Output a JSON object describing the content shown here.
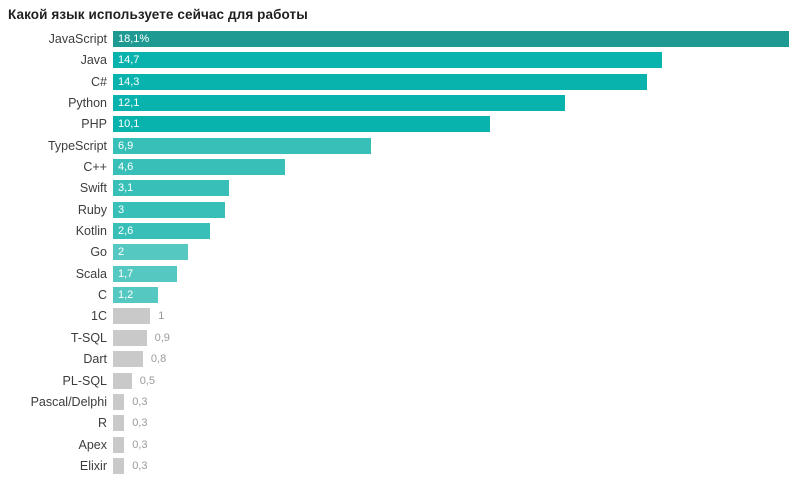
{
  "title": "Какой язык используете сейчас для работы",
  "colors": {
    "bar_dark_teal": "#1f9a93",
    "bar_bright_teal": "#07b3ac",
    "bar_medium_teal": "#38bfb8",
    "bar_light_teal": "#55c9c1",
    "bar_gray": "#c9c9c9",
    "value_inside_text": "#ffffff",
    "value_outside_text": "#9b9b9b",
    "category_text": "#3d3d3d",
    "title_text": "#1f1f1f"
  },
  "chart_data": {
    "type": "bar",
    "orientation": "horizontal",
    "title": "Какой язык используете сейчас для работы",
    "xlabel": "",
    "ylabel": "",
    "unit": "%",
    "xlim": [
      0,
      18.1
    ],
    "grid": false,
    "legend": false,
    "categories": [
      "JavaScript",
      "Java",
      "C#",
      "Python",
      "PHP",
      "TypeScript",
      "C++",
      "Swift",
      "Ruby",
      "Kotlin",
      "Go",
      "Scala",
      "C",
      "1C",
      "T-SQL",
      "Dart",
      "PL-SQL",
      "Pascal/Delphi",
      "R",
      "Apex",
      "Elixir"
    ],
    "values": [
      18.1,
      14.7,
      14.3,
      12.1,
      10.1,
      6.9,
      4.6,
      3.1,
      3,
      2.6,
      2,
      1.7,
      1.2,
      1,
      0.9,
      0.8,
      0.5,
      0.3,
      0.3,
      0.3,
      0.3
    ],
    "bars": [
      {
        "category": "JavaScript",
        "value": 18.1,
        "display": "18,1%",
        "color": "#1f9a93",
        "label_inside": true
      },
      {
        "category": "Java",
        "value": 14.7,
        "display": "14,7",
        "color": "#07b3ac",
        "label_inside": true
      },
      {
        "category": "C#",
        "value": 14.3,
        "display": "14,3",
        "color": "#07b3ac",
        "label_inside": true
      },
      {
        "category": "Python",
        "value": 12.1,
        "display": "12,1",
        "color": "#07b3ac",
        "label_inside": true
      },
      {
        "category": "PHP",
        "value": 10.1,
        "display": "10,1",
        "color": "#07b3ac",
        "label_inside": true
      },
      {
        "category": "TypeScript",
        "value": 6.9,
        "display": "6,9",
        "color": "#38bfb8",
        "label_inside": true
      },
      {
        "category": "C++",
        "value": 4.6,
        "display": "4,6",
        "color": "#38bfb8",
        "label_inside": true
      },
      {
        "category": "Swift",
        "value": 3.1,
        "display": "3,1",
        "color": "#38bfb8",
        "label_inside": true
      },
      {
        "category": "Ruby",
        "value": 3,
        "display": "3",
        "color": "#38bfb8",
        "label_inside": true
      },
      {
        "category": "Kotlin",
        "value": 2.6,
        "display": "2,6",
        "color": "#38bfb8",
        "label_inside": true
      },
      {
        "category": "Go",
        "value": 2,
        "display": "2",
        "color": "#55c9c1",
        "label_inside": true
      },
      {
        "category": "Scala",
        "value": 1.7,
        "display": "1,7",
        "color": "#55c9c1",
        "label_inside": true
      },
      {
        "category": "C",
        "value": 1.2,
        "display": "1,2",
        "color": "#55c9c1",
        "label_inside": true
      },
      {
        "category": "1C",
        "value": 1,
        "display": "1",
        "color": "#c9c9c9",
        "label_inside": false
      },
      {
        "category": "T-SQL",
        "value": 0.9,
        "display": "0,9",
        "color": "#c9c9c9",
        "label_inside": false
      },
      {
        "category": "Dart",
        "value": 0.8,
        "display": "0,8",
        "color": "#c9c9c9",
        "label_inside": false
      },
      {
        "category": "PL-SQL",
        "value": 0.5,
        "display": "0,5",
        "color": "#c9c9c9",
        "label_inside": false
      },
      {
        "category": "Pascal/Delphi",
        "value": 0.3,
        "display": "0,3",
        "color": "#c9c9c9",
        "label_inside": false
      },
      {
        "category": "R",
        "value": 0.3,
        "display": "0,3",
        "color": "#c9c9c9",
        "label_inside": false
      },
      {
        "category": "Apex",
        "value": 0.3,
        "display": "0,3",
        "color": "#c9c9c9",
        "label_inside": false
      },
      {
        "category": "Elixir",
        "value": 0.3,
        "display": "0,3",
        "color": "#c9c9c9",
        "label_inside": false
      }
    ]
  }
}
